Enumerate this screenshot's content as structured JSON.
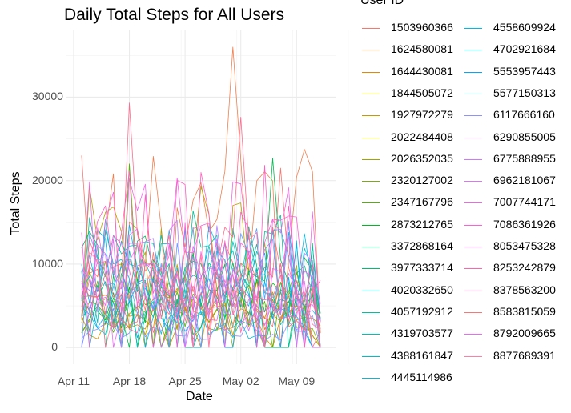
{
  "chart_data": {
    "type": "line",
    "title": "Daily Total Steps for All Users",
    "xlabel": "Date",
    "ylabel": "Total Steps",
    "legend_title": "User ID",
    "legend_position": "right",
    "grid": true,
    "x_tick_labels": [
      "Apr 11",
      "Apr 18",
      "Apr 25",
      "May 02",
      "May 09"
    ],
    "y_tick_labels": [
      "0",
      "10000",
      "20000",
      "30000"
    ],
    "xlim": [
      "2016-04-10",
      "2016-05-14"
    ],
    "ylim": [
      -2000,
      38000
    ],
    "user_ids": [
      "1503960366",
      "1624580081",
      "1644430081",
      "1844505072",
      "1927972279",
      "2022484408",
      "2026352035",
      "2320127002",
      "2347167796",
      "2873212765",
      "3372868164",
      "3977333714",
      "4020332650",
      "4057192912",
      "4319703577",
      "4388161847",
      "4445114986",
      "4558609924",
      "4702921684",
      "5553957443",
      "5577150313",
      "6117666160",
      "6290855005",
      "6775888955",
      "6962181067",
      "7007744171",
      "7086361926",
      "8053475328",
      "8253242879",
      "8378563200",
      "8583815059",
      "8792009665",
      "8877689391"
    ],
    "colors": [
      "#F8766D",
      "#F07F4D",
      "#E58700",
      "#D69100",
      "#C59900",
      "#B1A000",
      "#99A800",
      "#7CAE00",
      "#53B400",
      "#00B81F",
      "#00BB4E",
      "#00BE6C",
      "#00C085",
      "#00C19C",
      "#00C1B1",
      "#00BFC4",
      "#00BCD6",
      "#00B7E7",
      "#00B0F6",
      "#00A7FF",
      "#619CFF",
      "#8F91FF",
      "#B385FF",
      "#CF78FF",
      "#E46FFA",
      "#F265E8",
      "#FC61D5",
      "#FF61C0",
      "#FF65A8",
      "#FF6C90",
      "#F87776",
      "#E76BF3",
      "#FF7FA6"
    ],
    "series_note": "Each user has 31 daily values from 2016-04-12 to 2016-05-12 (approximate readings)."
  }
}
